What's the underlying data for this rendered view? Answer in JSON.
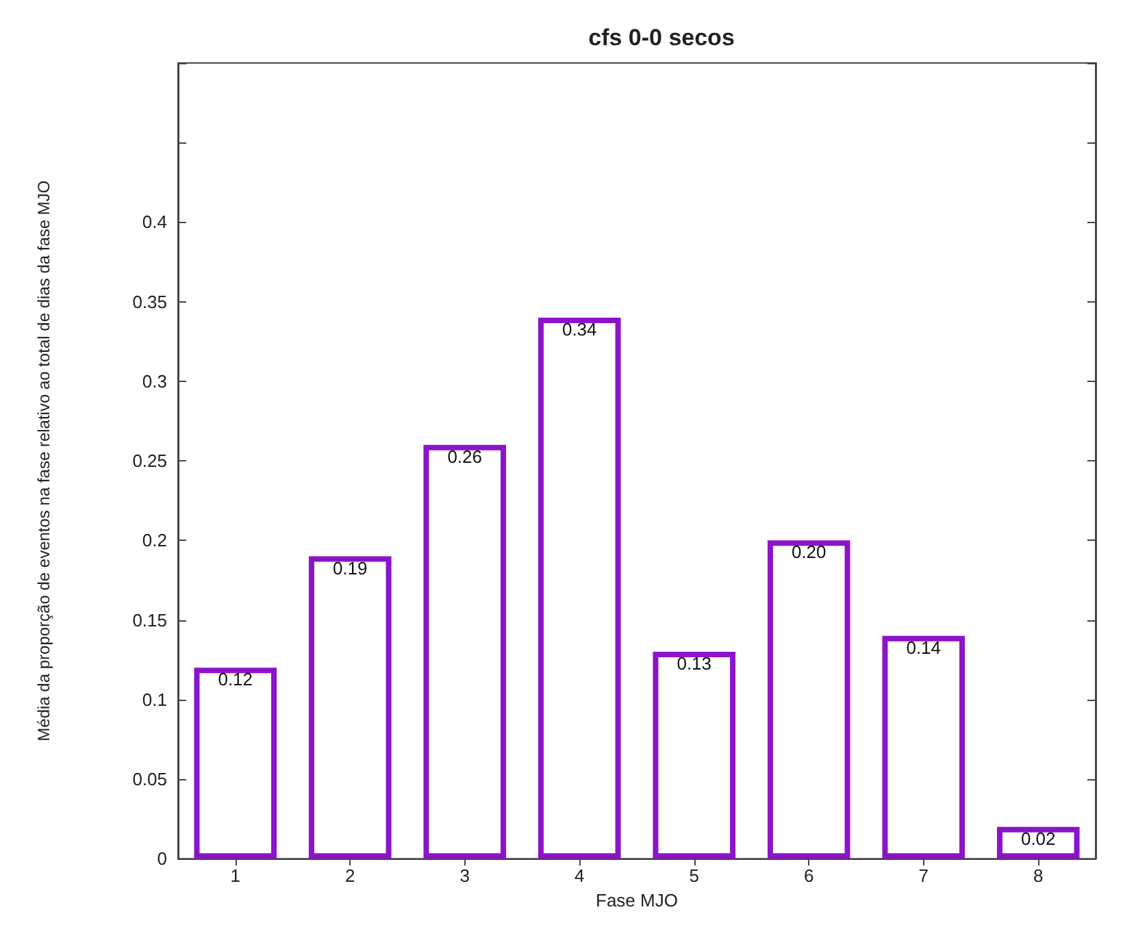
{
  "chart_data": {
    "type": "bar",
    "title": "cfs 0-0 secos",
    "xlabel": "Fase MJO",
    "ylabel": "Média da proporção de eventos na fase relativo ao total de dias da fase MJO",
    "categories": [
      "1",
      "2",
      "3",
      "4",
      "5",
      "6",
      "7",
      "8"
    ],
    "values": [
      0.12,
      0.19,
      0.26,
      0.34,
      0.13,
      0.2,
      0.14,
      0.02
    ],
    "value_labels": [
      "0.12",
      "0.19",
      "0.26",
      "0.34",
      "0.13",
      "0.20",
      "0.14",
      "0.02"
    ],
    "color": "#8c14c8",
    "ylim": [
      0,
      0.5
    ],
    "yticks": [
      0,
      0.05,
      0.1,
      0.15,
      0.2,
      0.25,
      0.3,
      0.35,
      0.4,
      {
        "value": 0.45,
        "label": null
      },
      {
        "value": 0.5,
        "label": null
      }
    ],
    "grid": false
  }
}
